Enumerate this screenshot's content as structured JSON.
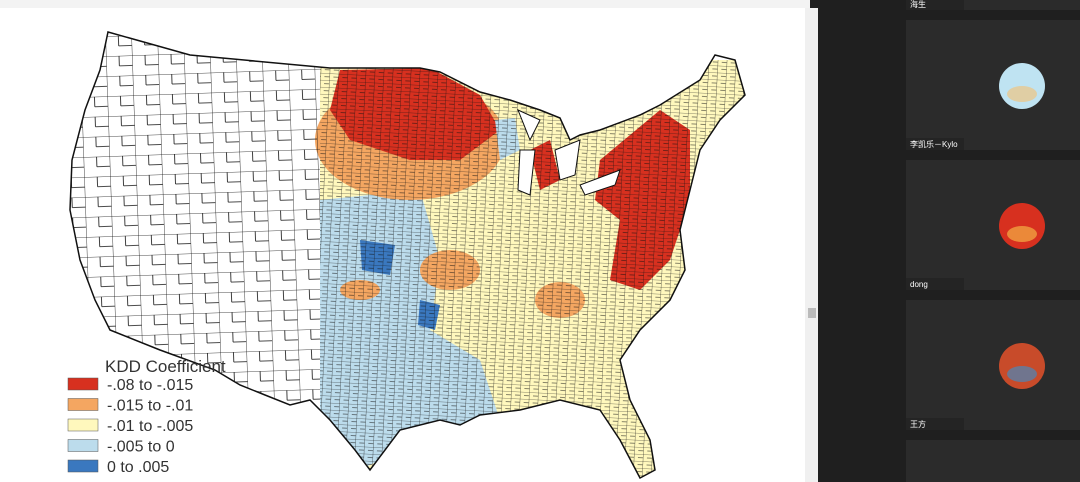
{
  "slide": {
    "legend": {
      "title": "KDD Coefficient",
      "items": [
        {
          "label": "-.08 to -.015",
          "color": "#d7301f"
        },
        {
          "label": "-.015 to -.01",
          "color": "#f4a661"
        },
        {
          "label": "-.01 to -.005",
          "color": "#fff8bd"
        },
        {
          "label": "-.005 to 0",
          "color": "#bcdcec"
        },
        {
          "label": "0 to .005",
          "color": "#3a78bf"
        }
      ]
    }
  },
  "participants": [
    {
      "name": "海生"
    },
    {
      "name": "李凯乐－Kylo"
    },
    {
      "name": "dong"
    },
    {
      "name": "王方"
    }
  ]
}
